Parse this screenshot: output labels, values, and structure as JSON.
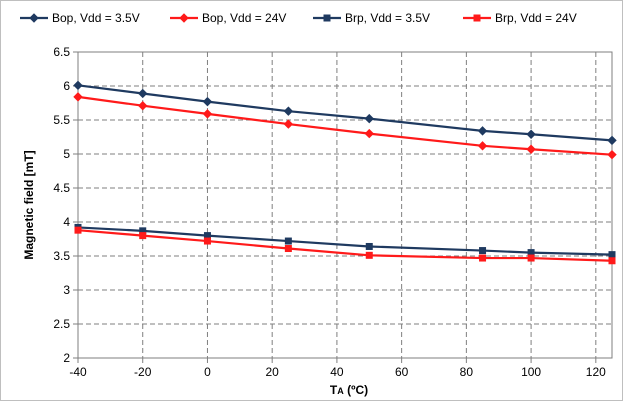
{
  "chart_data": {
    "type": "line",
    "xlabel_main": "T",
    "xlabel_sub": "A",
    "xlabel_unit": " (ºC)",
    "ylabel": "Magnetic field [mT]",
    "xlim": [
      -40,
      125
    ],
    "ylim": [
      2,
      6.5
    ],
    "xticks": [
      -40,
      -20,
      0,
      20,
      40,
      60,
      80,
      100,
      120
    ],
    "yticks": [
      2,
      2.5,
      3,
      3.5,
      4,
      4.5,
      5,
      5.5,
      6,
      6.5
    ],
    "grid": true,
    "legend_position": "top",
    "series": [
      {
        "name": "Bop, Vdd = 3.5V",
        "color": "#1f3a60",
        "marker": "diamond",
        "x": [
          -40,
          -20,
          0,
          25,
          50,
          85,
          100,
          125
        ],
        "y": [
          6.01,
          5.89,
          5.77,
          5.63,
          5.52,
          5.34,
          5.29,
          5.2
        ]
      },
      {
        "name": "Bop, Vdd = 24V",
        "color": "#ff1a1a",
        "marker": "diamond",
        "x": [
          -40,
          -20,
          0,
          25,
          50,
          85,
          100,
          125
        ],
        "y": [
          5.84,
          5.71,
          5.59,
          5.44,
          5.3,
          5.12,
          5.07,
          4.99
        ]
      },
      {
        "name": "Brp, Vdd = 3.5V",
        "color": "#1f3a60",
        "marker": "square",
        "x": [
          -40,
          -20,
          0,
          25,
          50,
          85,
          100,
          125
        ],
        "y": [
          3.92,
          3.87,
          3.8,
          3.72,
          3.64,
          3.58,
          3.55,
          3.52
        ]
      },
      {
        "name": "Brp, Vdd = 24V",
        "color": "#ff1a1a",
        "marker": "square",
        "x": [
          -40,
          -20,
          0,
          25,
          50,
          85,
          100,
          125
        ],
        "y": [
          3.88,
          3.8,
          3.72,
          3.61,
          3.51,
          3.47,
          3.47,
          3.43
        ]
      }
    ]
  }
}
